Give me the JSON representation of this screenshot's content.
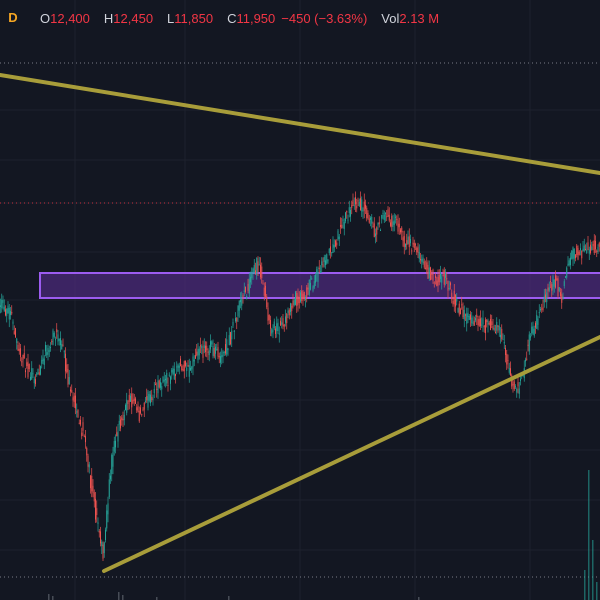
{
  "legend": {
    "interval": "D",
    "open_key": "O",
    "open": "12,400",
    "high_key": "H",
    "high": "12,450",
    "low_key": "L",
    "low": "11,850",
    "close_key": "C",
    "close": "11,950",
    "change": "−450 (−3.63%)",
    "volume_key": "Vol",
    "volume": "2.13 M"
  },
  "colors": {
    "background": "#131722",
    "grid": "#1e222d",
    "up_candle": "#26a69a",
    "down_candle": "#ef5350",
    "trendline": "#a89d3a",
    "zone_fill": "#4b2a7a",
    "zone_border": "#9c5cf0",
    "price_line": "#f23645",
    "dotted_level": "#787b86"
  },
  "chart_data": {
    "type": "candlestick",
    "description_of_series": "daily price candles with two converging trendlines and a horizontal support/resistance zone",
    "price_path": [
      {
        "t": 0,
        "p": 0.62
      },
      {
        "t": 5,
        "p": 0.6
      },
      {
        "t": 12,
        "p": 0.58
      },
      {
        "t": 20,
        "p": 0.5
      },
      {
        "t": 28,
        "p": 0.46
      },
      {
        "t": 36,
        "p": 0.44
      },
      {
        "t": 44,
        "p": 0.49
      },
      {
        "t": 52,
        "p": 0.53
      },
      {
        "t": 58,
        "p": 0.54
      },
      {
        "t": 64,
        "p": 0.5
      },
      {
        "t": 70,
        "p": 0.43
      },
      {
        "t": 78,
        "p": 0.36
      },
      {
        "t": 86,
        "p": 0.3
      },
      {
        "t": 92,
        "p": 0.2
      },
      {
        "t": 98,
        "p": 0.11
      },
      {
        "t": 104,
        "p": 0.04
      },
      {
        "t": 108,
        "p": 0.16
      },
      {
        "t": 114,
        "p": 0.29
      },
      {
        "t": 122,
        "p": 0.35
      },
      {
        "t": 130,
        "p": 0.4
      },
      {
        "t": 140,
        "p": 0.36
      },
      {
        "t": 150,
        "p": 0.4
      },
      {
        "t": 160,
        "p": 0.43
      },
      {
        "t": 170,
        "p": 0.44
      },
      {
        "t": 180,
        "p": 0.47
      },
      {
        "t": 190,
        "p": 0.46
      },
      {
        "t": 200,
        "p": 0.5
      },
      {
        "t": 212,
        "p": 0.51
      },
      {
        "t": 222,
        "p": 0.49
      },
      {
        "t": 232,
        "p": 0.54
      },
      {
        "t": 242,
        "p": 0.62
      },
      {
        "t": 252,
        "p": 0.66
      },
      {
        "t": 258,
        "p": 0.7
      },
      {
        "t": 264,
        "p": 0.66
      },
      {
        "t": 270,
        "p": 0.56
      },
      {
        "t": 278,
        "p": 0.55
      },
      {
        "t": 286,
        "p": 0.57
      },
      {
        "t": 296,
        "p": 0.62
      },
      {
        "t": 306,
        "p": 0.63
      },
      {
        "t": 316,
        "p": 0.67
      },
      {
        "t": 326,
        "p": 0.71
      },
      {
        "t": 336,
        "p": 0.75
      },
      {
        "t": 346,
        "p": 0.8
      },
      {
        "t": 356,
        "p": 0.84
      },
      {
        "t": 366,
        "p": 0.82
      },
      {
        "t": 376,
        "p": 0.77
      },
      {
        "t": 386,
        "p": 0.81
      },
      {
        "t": 396,
        "p": 0.79
      },
      {
        "t": 406,
        "p": 0.75
      },
      {
        "t": 416,
        "p": 0.73
      },
      {
        "t": 426,
        "p": 0.69
      },
      {
        "t": 436,
        "p": 0.66
      },
      {
        "t": 446,
        "p": 0.67
      },
      {
        "t": 456,
        "p": 0.61
      },
      {
        "t": 466,
        "p": 0.58
      },
      {
        "t": 476,
        "p": 0.57
      },
      {
        "t": 486,
        "p": 0.56
      },
      {
        "t": 496,
        "p": 0.56
      },
      {
        "t": 504,
        "p": 0.53
      },
      {
        "t": 510,
        "p": 0.45
      },
      {
        "t": 516,
        "p": 0.41
      },
      {
        "t": 522,
        "p": 0.44
      },
      {
        "t": 530,
        "p": 0.53
      },
      {
        "t": 540,
        "p": 0.58
      },
      {
        "t": 548,
        "p": 0.64
      },
      {
        "t": 556,
        "p": 0.66
      },
      {
        "t": 562,
        "p": 0.62
      },
      {
        "t": 568,
        "p": 0.69
      },
      {
        "t": 574,
        "p": 0.73
      },
      {
        "t": 582,
        "p": 0.72
      },
      {
        "t": 590,
        "p": 0.74
      },
      {
        "t": 600,
        "p": 0.73
      }
    ]
  }
}
